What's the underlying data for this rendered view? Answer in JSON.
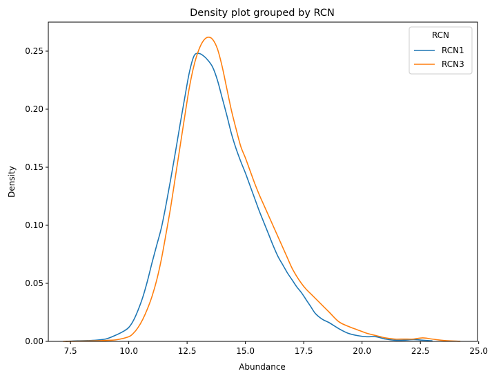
{
  "chart_data": {
    "type": "line",
    "title": "Density plot grouped by RCN",
    "xlabel": "Abundance",
    "ylabel": "Density",
    "xlim": [
      6.55,
      24.95
    ],
    "ylim": [
      0,
      0.275
    ],
    "xticks": [
      7.5,
      10.0,
      12.5,
      15.0,
      17.5,
      20.0,
      22.5,
      25.0
    ],
    "xtick_labels": [
      "7.5",
      "10.0",
      "12.5",
      "15.0",
      "17.5",
      "20.0",
      "22.5",
      "25.0"
    ],
    "yticks": [
      0,
      0.05,
      0.1,
      0.15,
      0.2,
      0.25
    ],
    "ytick_labels": [
      "0.00",
      "0.05",
      "0.10",
      "0.15",
      "0.20",
      "0.25"
    ],
    "grid": false,
    "legend": {
      "title": "RCN",
      "position": "top-right"
    },
    "series": [
      {
        "name": "RCN1",
        "color": "#1f77b4",
        "x": [
          7.3,
          7.8,
          8.4,
          9.0,
          9.4,
          9.8,
          10.0,
          10.2,
          10.4,
          10.6,
          10.8,
          11.0,
          11.2,
          11.4,
          11.6,
          11.8,
          12.0,
          12.2,
          12.4,
          12.6,
          12.8,
          13.0,
          13.2,
          13.4,
          13.6,
          13.8,
          14.0,
          14.2,
          14.4,
          14.6,
          14.8,
          15.0,
          15.2,
          15.4,
          15.6,
          15.8,
          16.0,
          16.2,
          16.4,
          16.6,
          16.8,
          17.0,
          17.2,
          17.4,
          17.6,
          17.8,
          18.0,
          18.3,
          18.6,
          19.0,
          19.4,
          19.8,
          20.2,
          20.6,
          21.0,
          21.4,
          21.8,
          22.2,
          22.6,
          23.0
        ],
        "y": [
          0.0,
          0.0005,
          0.0008,
          0.002,
          0.005,
          0.009,
          0.012,
          0.018,
          0.027,
          0.038,
          0.052,
          0.068,
          0.083,
          0.098,
          0.118,
          0.14,
          0.163,
          0.187,
          0.21,
          0.232,
          0.246,
          0.248,
          0.246,
          0.242,
          0.236,
          0.225,
          0.21,
          0.195,
          0.179,
          0.166,
          0.155,
          0.145,
          0.134,
          0.123,
          0.112,
          0.102,
          0.092,
          0.082,
          0.073,
          0.066,
          0.059,
          0.053,
          0.047,
          0.042,
          0.036,
          0.03,
          0.024,
          0.019,
          0.016,
          0.011,
          0.007,
          0.005,
          0.004,
          0.004,
          0.002,
          0.001,
          0.001,
          0.0015,
          0.001,
          0.0005
        ]
      },
      {
        "name": "RCN3",
        "color": "#ff7f0e",
        "x": [
          7.2,
          7.8,
          8.4,
          9.0,
          9.5,
          10.0,
          10.2,
          10.4,
          10.6,
          10.8,
          11.0,
          11.2,
          11.4,
          11.6,
          11.8,
          12.0,
          12.2,
          12.4,
          12.6,
          12.8,
          13.0,
          13.2,
          13.4,
          13.6,
          13.8,
          14.0,
          14.2,
          14.4,
          14.6,
          14.8,
          15.0,
          15.2,
          15.4,
          15.6,
          15.8,
          16.0,
          16.2,
          16.4,
          16.6,
          16.8,
          17.0,
          17.2,
          17.4,
          17.6,
          17.8,
          18.0,
          18.3,
          18.6,
          19.0,
          19.4,
          19.8,
          20.2,
          20.6,
          21.0,
          21.4,
          21.8,
          22.2,
          22.6,
          23.0,
          23.5,
          24.2
        ],
        "y": [
          0.0,
          0.0002,
          0.0004,
          0.0008,
          0.0015,
          0.004,
          0.007,
          0.012,
          0.019,
          0.028,
          0.039,
          0.053,
          0.071,
          0.093,
          0.116,
          0.142,
          0.168,
          0.194,
          0.219,
          0.238,
          0.251,
          0.259,
          0.262,
          0.26,
          0.252,
          0.237,
          0.218,
          0.199,
          0.183,
          0.168,
          0.158,
          0.147,
          0.136,
          0.126,
          0.117,
          0.108,
          0.099,
          0.09,
          0.081,
          0.072,
          0.063,
          0.056,
          0.05,
          0.045,
          0.041,
          0.037,
          0.031,
          0.025,
          0.017,
          0.013,
          0.01,
          0.007,
          0.005,
          0.003,
          0.002,
          0.002,
          0.002,
          0.003,
          0.002,
          0.0008,
          0.0001
        ]
      }
    ]
  }
}
